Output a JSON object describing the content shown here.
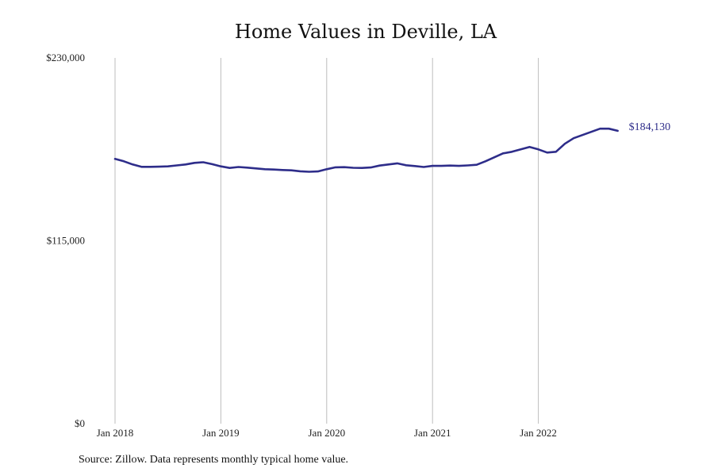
{
  "chart_data": {
    "type": "line",
    "title": "Home Values in Deville, LA",
    "xlabel": "",
    "ylabel": "",
    "x_ticks": [
      "Jan 2018",
      "Jan 2019",
      "Jan 2020",
      "Jan 2021",
      "Jan 2022"
    ],
    "y_ticks": [
      "$0",
      "$115,000",
      "$230,000"
    ],
    "ylim": [
      0,
      230000
    ],
    "xlim": [
      "2018-01",
      "2022-10"
    ],
    "grid": "vertical",
    "legend": "none",
    "colors": {
      "line": "#2e2d8a",
      "grid": "#bdbdbd",
      "end_label": "#2e2d8a"
    },
    "series": [
      {
        "x": [
          "2018-01",
          "2018-02",
          "2018-03",
          "2018-04",
          "2018-05",
          "2018-06",
          "2018-07",
          "2018-08",
          "2018-09",
          "2018-10",
          "2018-11",
          "2018-12",
          "2019-01",
          "2019-02",
          "2019-03",
          "2019-04",
          "2019-05",
          "2019-06",
          "2019-07",
          "2019-08",
          "2019-09",
          "2019-10",
          "2019-11",
          "2019-12",
          "2020-01",
          "2020-02",
          "2020-03",
          "2020-04",
          "2020-05",
          "2020-06",
          "2020-07",
          "2020-08",
          "2020-09",
          "2020-10",
          "2020-11",
          "2020-12",
          "2021-01",
          "2021-02",
          "2021-03",
          "2021-04",
          "2021-05",
          "2021-06",
          "2021-07",
          "2021-08",
          "2021-09",
          "2021-10",
          "2021-11",
          "2021-12",
          "2022-01",
          "2022-02",
          "2022-03",
          "2022-04",
          "2022-05",
          "2022-06",
          "2022-07",
          "2022-08",
          "2022-09",
          "2022-10"
        ],
        "values": [
          166500,
          165000,
          163000,
          161500,
          161500,
          161600,
          161800,
          162400,
          163000,
          164000,
          164400,
          163200,
          161800,
          160800,
          161400,
          161000,
          160500,
          160000,
          159800,
          159500,
          159300,
          158700,
          158400,
          158600,
          160000,
          161200,
          161300,
          160900,
          160800,
          161100,
          162300,
          163000,
          163700,
          162500,
          162000,
          161400,
          162100,
          162100,
          162300,
          162100,
          162400,
          162800,
          165000,
          167500,
          170000,
          171000,
          172500,
          174000,
          172500,
          170500,
          171000,
          176000,
          179500,
          181500,
          183500,
          185500,
          185500,
          184130
        ]
      }
    ],
    "end_label": "$184,130"
  },
  "source": "Source: Zillow. Data represents monthly typical home value."
}
